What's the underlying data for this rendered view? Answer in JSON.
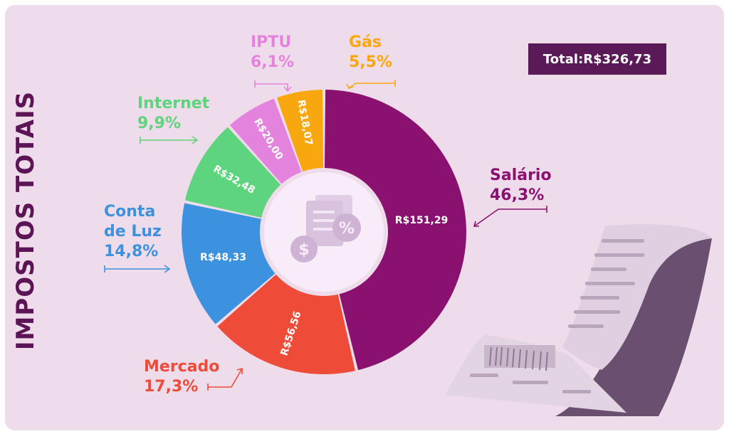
{
  "side_title": "IMPOSTOS TOTAIS",
  "total_label": "Total:R$326,73",
  "chart_data": {
    "type": "pie",
    "categories": [
      "Salário",
      "Mercado",
      "Conta de Luz",
      "Internet",
      "IPTU",
      "Gás"
    ],
    "values": [
      151.29,
      56.56,
      48.33,
      32.48,
      20.0,
      18.07
    ],
    "value_labels": [
      "R$151,29",
      "R$56,56",
      "R$48,33",
      "R$32,48",
      "R$20,00",
      "R$18,07"
    ],
    "percent_labels": [
      "46,3%",
      "17,3%",
      "14,8%",
      "9,9%",
      "6,1%",
      "5,5%"
    ],
    "colors": [
      "#8b1171",
      "#ee4b39",
      "#3d92df",
      "#5ed47e",
      "#e483dd",
      "#f9a70e"
    ]
  },
  "labels": {
    "salario": {
      "name": "Salário",
      "pct": "46,3%"
    },
    "mercado": {
      "name": "Mercado",
      "pct": "17,3%"
    },
    "luz": {
      "name_line1": "Conta",
      "name_line2": "de Luz",
      "pct": "14,8%"
    },
    "internet": {
      "name": "Internet",
      "pct": "9,9%"
    },
    "iptu": {
      "name": "IPTU",
      "pct": "6,1%"
    },
    "gas": {
      "name": "Gás",
      "pct": "5,5%"
    }
  }
}
